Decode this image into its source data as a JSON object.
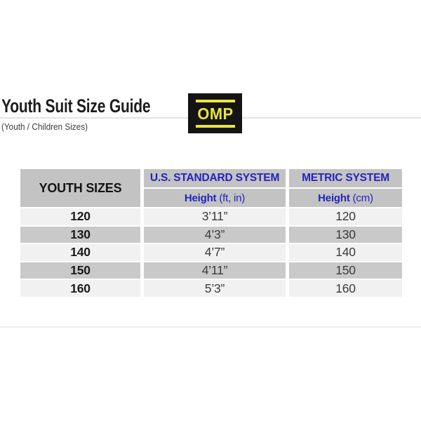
{
  "header": {
    "title": "Youth Suit Size Guide",
    "subtitle": "(Youth / Children Sizes)",
    "brand": "OMP"
  },
  "table": {
    "youth_sizes_header": "YOUTH SIZES",
    "us_system_header": "U.S. STANDARD SYSTEM",
    "metric_system_header": "METRIC SYSTEM",
    "us_height_label": "Height",
    "us_height_unit": "(ft, in)",
    "metric_height_label": "Height",
    "metric_height_unit": "(cm)",
    "rows": [
      {
        "size": "120",
        "height_ft_in": "3’11”",
        "height_cm": "120"
      },
      {
        "size": "130",
        "height_ft_in": "4’3”",
        "height_cm": "130"
      },
      {
        "size": "140",
        "height_ft_in": "4’7”",
        "height_cm": "140"
      },
      {
        "size": "150",
        "height_ft_in": "4’11”",
        "height_cm": "150"
      },
      {
        "size": "160",
        "height_ft_in": "5’3”",
        "height_cm": "160"
      }
    ]
  },
  "colors": {
    "accent_blue": "#2424be",
    "header_gray": "#c3c3c3",
    "row_light": "#f1f1f1",
    "row_dark": "#c9c9c9",
    "logo_yellow": "#e9e53e",
    "logo_black": "#141414"
  }
}
